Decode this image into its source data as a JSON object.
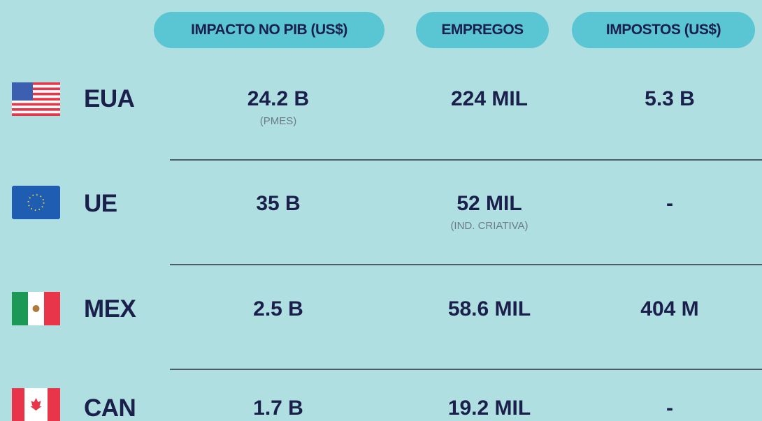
{
  "table": {
    "headers": [
      "IMPACTO NO PIB (US$)",
      "EMPREGOS",
      "IMPOSTOS (US$)"
    ],
    "rows": [
      {
        "country": "EUA",
        "cells": [
          {
            "value": "24.2 B",
            "note": "(PMES)"
          },
          {
            "value": "224 MIL"
          },
          {
            "value": "5.3 B"
          }
        ]
      },
      {
        "country": "UE",
        "cells": [
          {
            "value": "35 B"
          },
          {
            "value": "52 MIL",
            "note": "(IND. CRIATIVA)"
          },
          {
            "value": "-"
          }
        ]
      },
      {
        "country": "MEX",
        "cells": [
          {
            "value": "2.5 B"
          },
          {
            "value": "58.6 MIL"
          },
          {
            "value": "404 M"
          }
        ]
      },
      {
        "country": "CAN",
        "cells": [
          {
            "value": "1.7 B"
          },
          {
            "value": "19.2 MIL"
          },
          {
            "value": "-"
          }
        ]
      }
    ]
  }
}
